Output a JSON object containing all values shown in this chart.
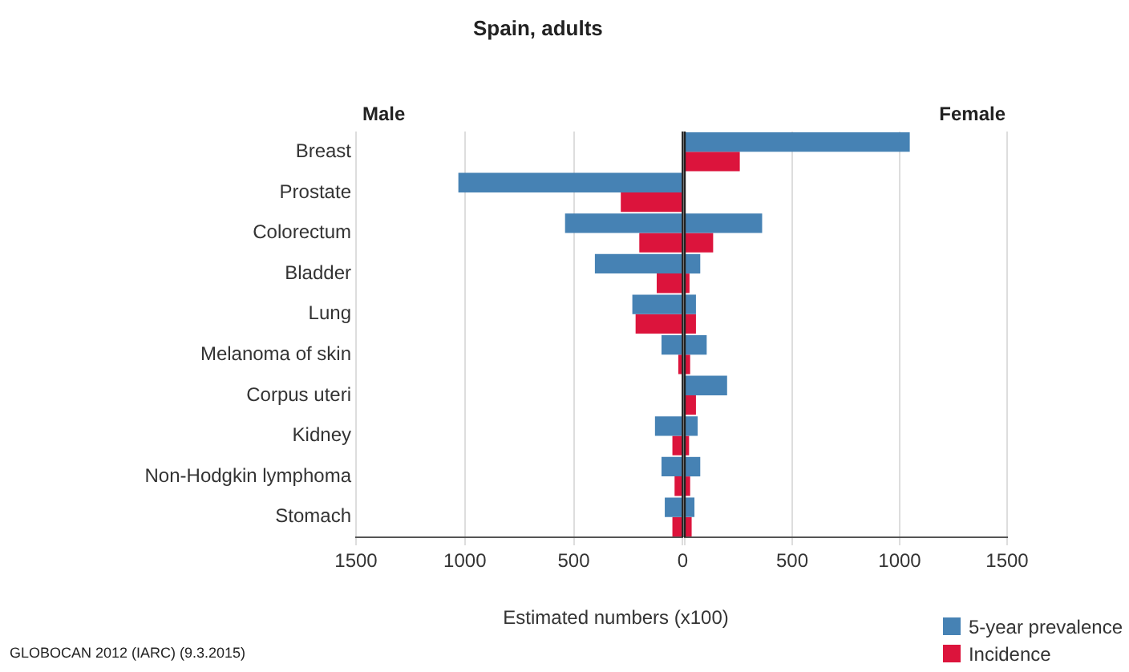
{
  "chart_data": [
    {
      "type": "bar",
      "orientation": "horizontal",
      "title": "Spain, adults",
      "xlabel": "Estimated numbers (x100)",
      "categories": [
        "Breast",
        "Prostate",
        "Colorectum",
        "Bladder",
        "Lung",
        "Melanoma of skin",
        "Corpus uteri",
        "Kidney",
        "Non-Hodgkin lymphoma",
        "Stomach"
      ],
      "series": [
        {
          "color": "#4682b4",
          "values": [
            null,
            1030,
            540,
            403,
            231,
            97,
            null,
            127,
            97,
            82
          ]
        },
        {
          "color": "#dc143c",
          "values": [
            null,
            284,
            199,
            119,
            216,
            20,
            null,
            47,
            37,
            47
          ]
        }
      ],
      "xlim": [
        1500,
        0
      ],
      "xticks": [
        1500,
        1000,
        500,
        0
      ],
      "grid": "x",
      "annotations": [
        "Male",
        "GLOBOCAN 2012 (IARC) (9.3.2015)"
      ]
    },
    {
      "type": "bar",
      "orientation": "horizontal",
      "categories": [
        null,
        null,
        null,
        null,
        null,
        null,
        null,
        null,
        null,
        null
      ],
      "series": [
        {
          "name": "5-year prevalence",
          "color": "#4682b4",
          "values": [
            1047,
            null,
            360,
            72,
            52,
            102,
            197,
            60,
            72,
            45
          ]
        },
        {
          "name": "Incidence",
          "color": "#dc143c",
          "values": [
            256,
            null,
            132,
            22,
            52,
            25,
            52,
            20,
            25,
            32
          ]
        }
      ],
      "xlim": [
        0,
        1500
      ],
      "xticks": [
        {
          "value": 0,
          "label": null
        },
        500,
        1000,
        1500
      ],
      "grid": "x",
      "tick_labels": "x",
      "legend": "bottom right",
      "annotations": [
        "Female"
      ]
    }
  ]
}
